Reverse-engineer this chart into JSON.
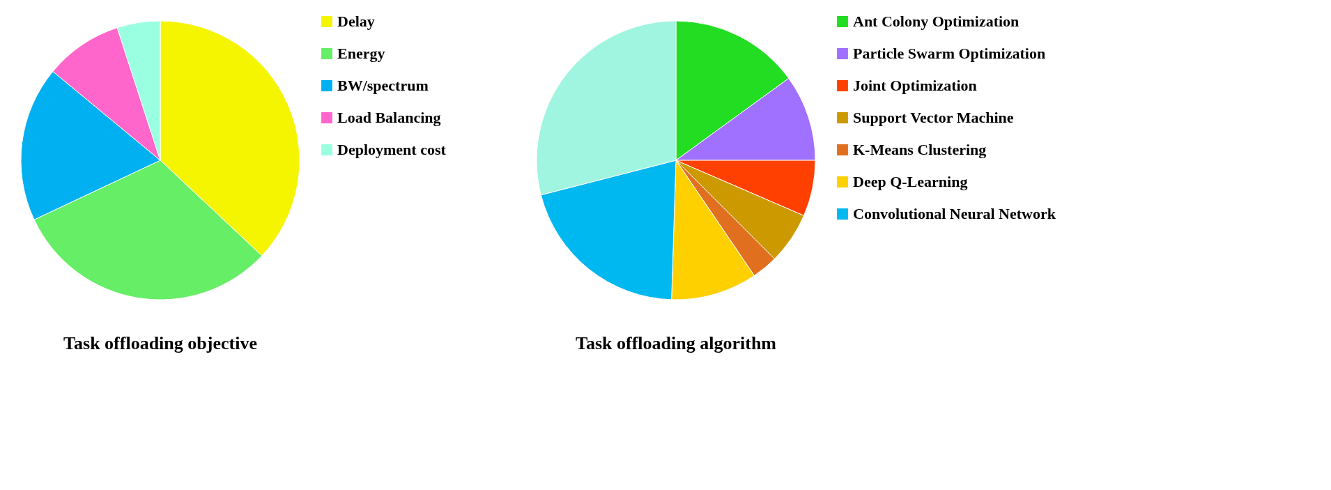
{
  "chart_data": [
    {
      "type": "pie",
      "title": "Task offloading objective",
      "legend": "right",
      "categories": [
        "Delay",
        "Energy",
        "BW/spectrum",
        "Load Balancing",
        "Deployment cost"
      ],
      "values": [
        37,
        31,
        18,
        9,
        5
      ],
      "colors": [
        "#f5f500",
        "#66ee66",
        "#00b0f0",
        "#ff66cc",
        "#99ffe0"
      ]
    },
    {
      "type": "pie",
      "title": "Task offloading algorithm",
      "legend": "right",
      "categories": [
        "Ant Colony Optimization",
        "Particle Swarm Optimization",
        "Joint Optimization",
        "Support Vector Machine",
        "K-Means Clustering",
        "Deep Q-Learning",
        "Convolutional  Neural Network",
        null
      ],
      "values": [
        15,
        10,
        6.5,
        6,
        3,
        10,
        20.5,
        29
      ],
      "colors": [
        "#22dd22",
        "#a070ff",
        "#ff4000",
        "#cc9900",
        "#e07020",
        "#ffd000",
        "#00b8f0",
        "#a0f5e0"
      ]
    }
  ]
}
